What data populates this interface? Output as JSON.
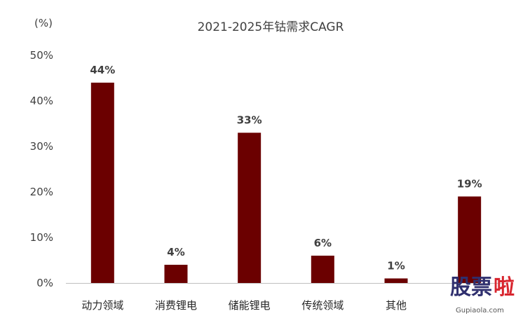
{
  "chart_data": {
    "type": "bar",
    "title": "2021-2025年钴需求CAGR",
    "unit_label": "(%)",
    "categories": [
      "动力领域",
      "消费锂电",
      "储能锂电",
      "传统领域",
      "其他",
      ""
    ],
    "values": [
      44,
      4,
      33,
      6,
      1,
      19
    ],
    "data_labels": [
      "44%",
      "4%",
      "33%",
      "6%",
      "1%",
      "19%"
    ],
    "yticks": [
      "0%",
      "10%",
      "20%",
      "30%",
      "40%",
      "50%"
    ],
    "ylim": [
      0,
      50
    ],
    "grid": false,
    "legend": "none",
    "bar_color": "#6b0000"
  },
  "watermark": {
    "main": "股票",
    "accent": "啦",
    "sub": "Gupiaola.com",
    "accent_color": "#d8262f"
  }
}
